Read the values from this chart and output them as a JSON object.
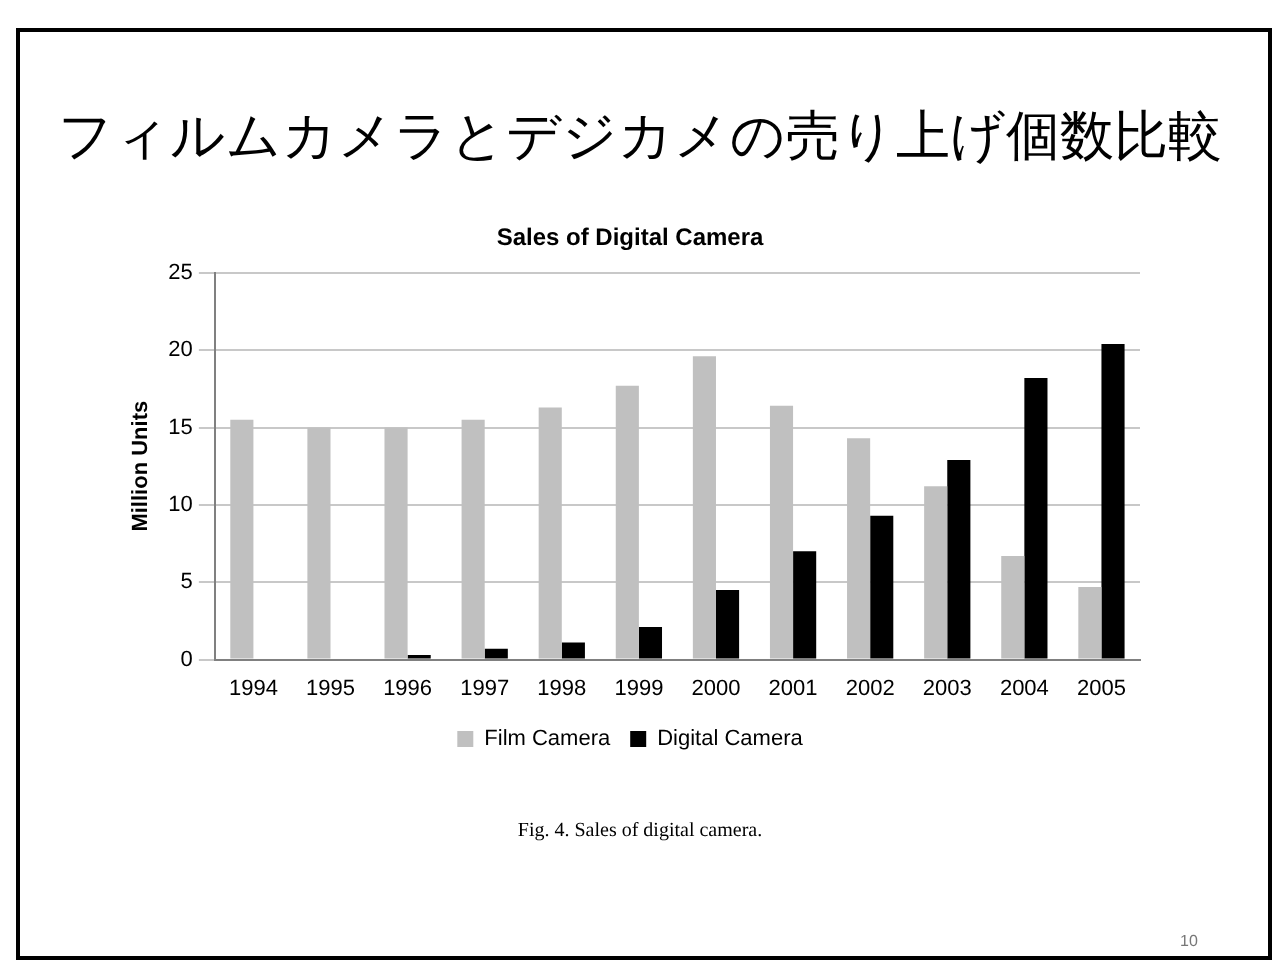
{
  "chart_data": {
    "type": "bar",
    "title": "フィルムカメラとデジカメの売り上げ個数比較",
    "subtitle": "Sales of Digital Camera",
    "ylabel": "Million Units",
    "categories": [
      "1994",
      "1995",
      "1996",
      "1997",
      "1998",
      "1999",
      "2000",
      "2001",
      "2002",
      "2003",
      "2004",
      "2005"
    ],
    "series": [
      {
        "name": "Film Camera",
        "color": "#c0c0c0",
        "values": [
          15.5,
          15.0,
          15.0,
          15.5,
          16.3,
          17.7,
          19.6,
          16.4,
          14.3,
          11.2,
          6.7,
          4.7
        ]
      },
      {
        "name": "Digital Camera",
        "color": "#000000",
        "values": [
          0,
          0,
          0.3,
          0.7,
          1.1,
          2.1,
          4.5,
          7.0,
          9.3,
          12.9,
          18.2,
          20.4
        ]
      }
    ],
    "ylim": [
      0,
      25
    ],
    "yticks": [
      0,
      5,
      10,
      15,
      20,
      25
    ],
    "grid": "y",
    "legend": "bottom",
    "annotations": [
      "Fig. 4. Sales of digital camera.",
      "10"
    ]
  }
}
